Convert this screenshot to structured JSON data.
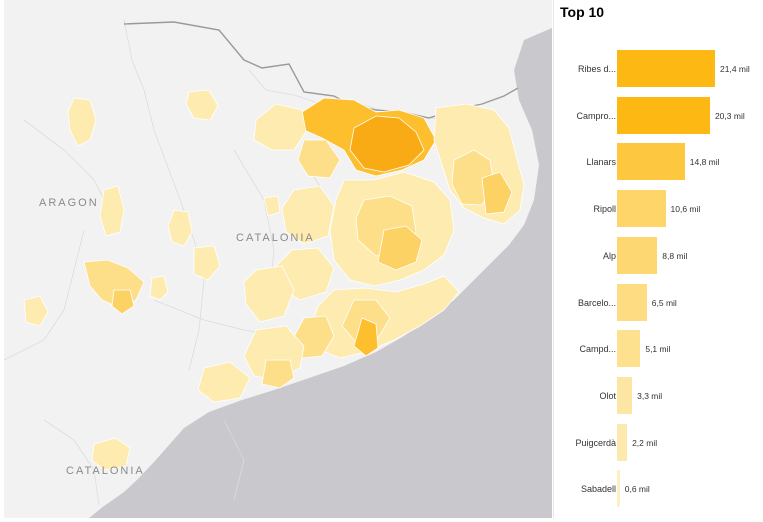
{
  "map": {
    "labels": [
      "ARAGON",
      "CATALONIA",
      "CATALONIA"
    ],
    "colors": {
      "sea": "#c9c9cd",
      "land": "#f2f2f2",
      "border": "#ffffff",
      "pale": "#fdebb0",
      "light": "#fddf8a",
      "medium": "#fdd265",
      "strong": "#fdbf2d",
      "darkest": "#f8ab14"
    }
  },
  "chart_data": {
    "type": "bar",
    "orientation": "horizontal",
    "title": "Top 10",
    "categories": [
      "Ribes d...",
      "Campro...",
      "Llanars",
      "Ripoll",
      "Alp",
      "Barcelo...",
      "Campd...",
      "Olot",
      "Puigcerdà",
      "Sabadell"
    ],
    "values": [
      21.4,
      20.3,
      14.8,
      10.6,
      8.8,
      6.5,
      5.1,
      3.3,
      2.2,
      0.6
    ],
    "value_labels": [
      "21,4 mil",
      "20,3 mil",
      "14,8 mil",
      "10,6 mil",
      "8,8 mil",
      "6,5 mil",
      "5,1 mil",
      "3,3 mil",
      "2,2 mil",
      "0,6 mil"
    ],
    "colors": [
      "#fdb813",
      "#fdb813",
      "#fdc840",
      "#fdd568",
      "#fdd872",
      "#fddc82",
      "#fde18f",
      "#fde6a3",
      "#fde9ad",
      "#fef0c6"
    ]
  }
}
